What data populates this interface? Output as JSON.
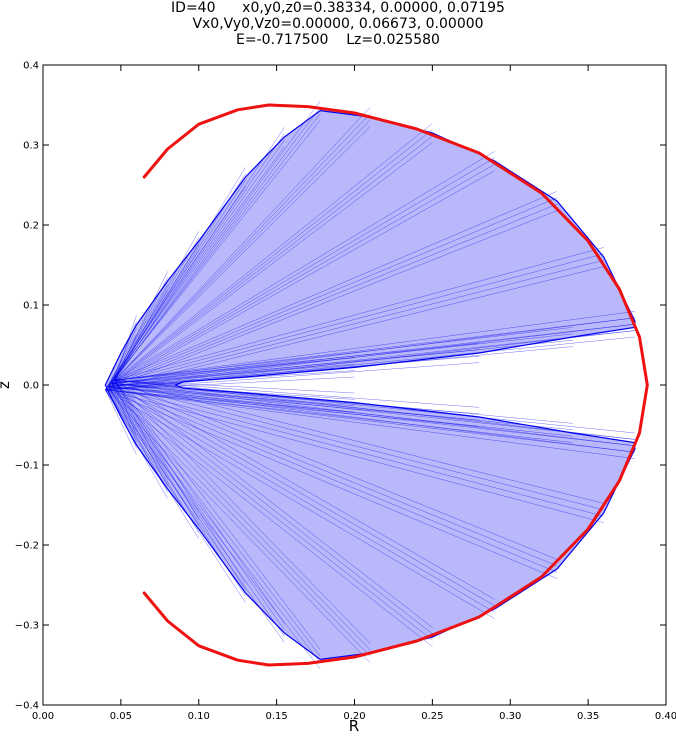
{
  "header": {
    "line1": "ID=40      x0,y0,z0=0.38334, 0.00000, 0.07195",
    "line2": "Vx0,Vy0,Vz0=0.00000, 0.06673, 0.00000",
    "line3": "E=-0.717500    Lz=0.025580"
  },
  "chart_data": {
    "type": "line",
    "xlabel": "R",
    "ylabel": "z",
    "xlim": [
      0.0,
      0.4
    ],
    "ylim": [
      -0.4,
      0.4
    ],
    "xticks": [
      0.0,
      0.05,
      0.1,
      0.15,
      0.2,
      0.25,
      0.3,
      0.35,
      0.4
    ],
    "xtick_labels": [
      "0.00",
      "0.05",
      "0.10",
      "0.15",
      "0.20",
      "0.25",
      "0.30",
      "0.35",
      "0.40"
    ],
    "yticks": [
      -0.4,
      -0.3,
      -0.2,
      -0.1,
      0.0,
      0.1,
      0.2,
      0.3,
      0.4
    ],
    "ytick_labels": [
      "−0.4",
      "−0.3",
      "−0.2",
      "−0.1",
      "0.0",
      "0.1",
      "0.2",
      "0.3",
      "0.4"
    ],
    "grid": false,
    "series": [
      {
        "kind": "zero-velocity-curve",
        "color": "#ee1111",
        "points": [
          [
            0.065,
            0.26
          ],
          [
            0.08,
            0.295
          ],
          [
            0.1,
            0.326
          ],
          [
            0.125,
            0.344
          ],
          [
            0.145,
            0.35
          ],
          [
            0.17,
            0.348
          ],
          [
            0.2,
            0.34
          ],
          [
            0.24,
            0.32
          ],
          [
            0.28,
            0.29
          ],
          [
            0.32,
            0.24
          ],
          [
            0.35,
            0.18
          ],
          [
            0.37,
            0.12
          ],
          [
            0.383,
            0.06
          ],
          [
            0.388,
            0.0
          ],
          [
            0.383,
            -0.06
          ],
          [
            0.37,
            -0.12
          ],
          [
            0.35,
            -0.18
          ],
          [
            0.32,
            -0.24
          ],
          [
            0.28,
            -0.29
          ],
          [
            0.24,
            -0.32
          ],
          [
            0.2,
            -0.34
          ],
          [
            0.17,
            -0.348
          ],
          [
            0.145,
            -0.35
          ],
          [
            0.125,
            -0.344
          ],
          [
            0.1,
            -0.326
          ],
          [
            0.08,
            -0.295
          ],
          [
            0.065,
            -0.26
          ]
        ]
      },
      {
        "kind": "orbit-envelope",
        "color": "#0000ee",
        "points": [
          [
            0.04,
            0.0
          ],
          [
            0.05,
            0.04
          ],
          [
            0.06,
            0.075
          ],
          [
            0.08,
            0.13
          ],
          [
            0.1,
            0.18
          ],
          [
            0.13,
            0.26
          ],
          [
            0.155,
            0.31
          ],
          [
            0.178,
            0.343
          ],
          [
            0.21,
            0.335
          ],
          [
            0.25,
            0.315
          ],
          [
            0.29,
            0.28
          ],
          [
            0.33,
            0.23
          ],
          [
            0.36,
            0.16
          ],
          [
            0.38,
            0.08
          ],
          [
            0.38,
            0.072
          ],
          [
            0.34,
            0.06
          ],
          [
            0.28,
            0.04
          ],
          [
            0.2,
            0.022
          ],
          [
            0.13,
            0.01
          ],
          [
            0.09,
            0.004
          ],
          [
            0.085,
            0.0
          ],
          [
            0.09,
            -0.004
          ],
          [
            0.13,
            -0.01
          ],
          [
            0.2,
            -0.022
          ],
          [
            0.28,
            -0.04
          ],
          [
            0.34,
            -0.06
          ],
          [
            0.38,
            -0.072
          ],
          [
            0.38,
            -0.08
          ],
          [
            0.36,
            -0.16
          ],
          [
            0.33,
            -0.23
          ],
          [
            0.29,
            -0.28
          ],
          [
            0.25,
            -0.315
          ],
          [
            0.21,
            -0.335
          ],
          [
            0.178,
            -0.343
          ],
          [
            0.155,
            -0.31
          ],
          [
            0.13,
            -0.26
          ],
          [
            0.1,
            -0.18
          ],
          [
            0.08,
            -0.13
          ],
          [
            0.06,
            -0.075
          ],
          [
            0.05,
            -0.04
          ],
          [
            0.04,
            0.0
          ]
        ]
      }
    ]
  }
}
